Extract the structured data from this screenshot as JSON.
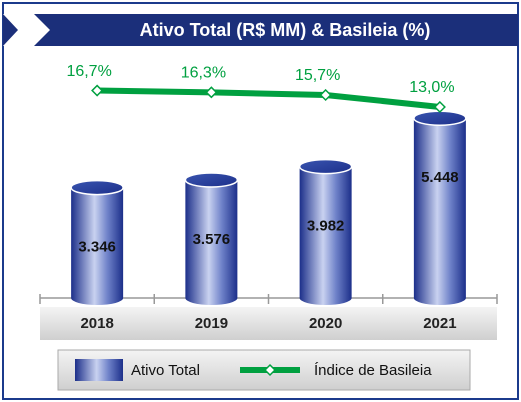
{
  "chart_data": {
    "type": "bar",
    "title": "Ativo Total (R$ MM) & Basileia (%)",
    "categories": [
      "2018",
      "2019",
      "2020",
      "2021"
    ],
    "series": [
      {
        "name": "Ativo Total",
        "type": "bar",
        "color": "#2c4fa3",
        "values": [
          3346,
          3576,
          3982,
          5448
        ],
        "value_labels": [
          "3.346",
          "3.576",
          "3.982",
          "5.448"
        ]
      },
      {
        "name": "Índice de Basileia",
        "type": "line",
        "color": "#00a040",
        "axis": "y2",
        "values": [
          16.7,
          16.3,
          15.7,
          13.0
        ],
        "value_labels": [
          "16,7%",
          "16,3%",
          "15,7%",
          "13,0%"
        ]
      }
    ],
    "ylim": [
      0,
      7000
    ],
    "y2lim": [
      -30,
      22
    ]
  }
}
